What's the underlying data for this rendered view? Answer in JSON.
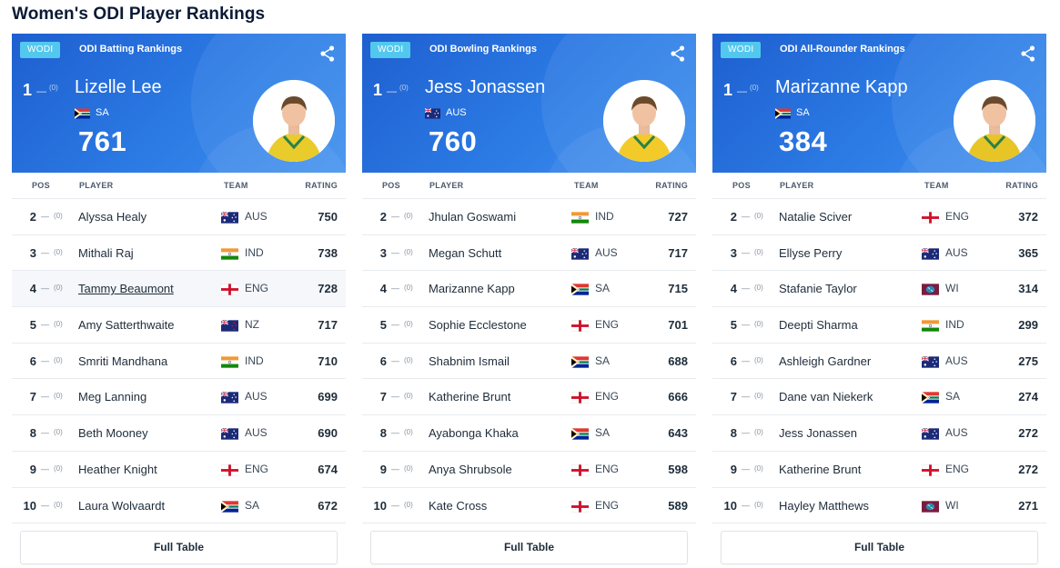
{
  "page_title": "Women's ODI Player Rankings",
  "colors": {
    "hero_blue": "#2c7be5",
    "badge": "#53c8ee"
  },
  "panels": [
    {
      "badge": "WODI",
      "heading": "ODI Batting Rankings",
      "share_icon": "share-icon",
      "leader": {
        "pos": "1",
        "change": "(0)",
        "name": "Lizelle Lee",
        "team": "SA",
        "flag": "SA",
        "rating": "761",
        "kit": "#e8c81e"
      },
      "headers": {
        "pos": "POS",
        "player": "PLAYER",
        "team": "TEAM",
        "rating": "RATING"
      },
      "rows": [
        {
          "pos": "2",
          "change": "(0)",
          "name": "Alyssa Healy",
          "team": "AUS",
          "flag": "AUS",
          "rating": "750"
        },
        {
          "pos": "3",
          "change": "(0)",
          "name": "Mithali Raj",
          "team": "IND",
          "flag": "IND",
          "rating": "738"
        },
        {
          "pos": "4",
          "change": "(0)",
          "name": "Tammy Beaumont",
          "team": "ENG",
          "flag": "ENG",
          "rating": "728",
          "hover": true
        },
        {
          "pos": "5",
          "change": "(0)",
          "name": "Amy Satterthwaite",
          "team": "NZ",
          "flag": "NZ",
          "rating": "717"
        },
        {
          "pos": "6",
          "change": "(0)",
          "name": "Smriti Mandhana",
          "team": "IND",
          "flag": "IND",
          "rating": "710"
        },
        {
          "pos": "7",
          "change": "(0)",
          "name": "Meg Lanning",
          "team": "AUS",
          "flag": "AUS",
          "rating": "699"
        },
        {
          "pos": "8",
          "change": "(0)",
          "name": "Beth Mooney",
          "team": "AUS",
          "flag": "AUS",
          "rating": "690"
        },
        {
          "pos": "9",
          "change": "(0)",
          "name": "Heather Knight",
          "team": "ENG",
          "flag": "ENG",
          "rating": "674"
        },
        {
          "pos": "10",
          "change": "(0)",
          "name": "Laura Wolvaardt",
          "team": "SA",
          "flag": "SA",
          "rating": "672"
        }
      ],
      "full_table": "Full Table"
    },
    {
      "badge": "WODI",
      "heading": "ODI Bowling Rankings",
      "share_icon": "share-icon",
      "leader": {
        "pos": "1",
        "change": "(0)",
        "name": "Jess Jonassen",
        "team": "AUS",
        "flag": "AUS",
        "rating": "760",
        "kit": "#f2c81d"
      },
      "headers": {
        "pos": "POS",
        "player": "PLAYER",
        "team": "TEAM",
        "rating": "RATING"
      },
      "rows": [
        {
          "pos": "2",
          "change": "(0)",
          "name": "Jhulan Goswami",
          "team": "IND",
          "flag": "IND",
          "rating": "727"
        },
        {
          "pos": "3",
          "change": "(0)",
          "name": "Megan Schutt",
          "team": "AUS",
          "flag": "AUS",
          "rating": "717"
        },
        {
          "pos": "4",
          "change": "(0)",
          "name": "Marizanne Kapp",
          "team": "SA",
          "flag": "SA",
          "rating": "715"
        },
        {
          "pos": "5",
          "change": "(0)",
          "name": "Sophie Ecclestone",
          "team": "ENG",
          "flag": "ENG",
          "rating": "701"
        },
        {
          "pos": "6",
          "change": "(0)",
          "name": "Shabnim Ismail",
          "team": "SA",
          "flag": "SA",
          "rating": "688"
        },
        {
          "pos": "7",
          "change": "(0)",
          "name": "Katherine Brunt",
          "team": "ENG",
          "flag": "ENG",
          "rating": "666"
        },
        {
          "pos": "8",
          "change": "(0)",
          "name": "Ayabonga Khaka",
          "team": "SA",
          "flag": "SA",
          "rating": "643"
        },
        {
          "pos": "9",
          "change": "(0)",
          "name": "Anya Shrubsole",
          "team": "ENG",
          "flag": "ENG",
          "rating": "598"
        },
        {
          "pos": "10",
          "change": "(0)",
          "name": "Kate Cross",
          "team": "ENG",
          "flag": "ENG",
          "rating": "589"
        }
      ],
      "full_table": "Full Table"
    },
    {
      "badge": "WODI",
      "heading": "ODI All-Rounder Rankings",
      "share_icon": "share-icon",
      "leader": {
        "pos": "1",
        "change": "(0)",
        "name": "Marizanne Kapp",
        "team": "SA",
        "flag": "SA",
        "rating": "384",
        "kit": "#e6c21a"
      },
      "headers": {
        "pos": "POS",
        "player": "PLAYER",
        "team": "TEAM",
        "rating": "RATING"
      },
      "rows": [
        {
          "pos": "2",
          "change": "(0)",
          "name": "Natalie Sciver",
          "team": "ENG",
          "flag": "ENG",
          "rating": "372"
        },
        {
          "pos": "3",
          "change": "(0)",
          "name": "Ellyse Perry",
          "team": "AUS",
          "flag": "AUS",
          "rating": "365"
        },
        {
          "pos": "4",
          "change": "(0)",
          "name": "Stafanie Taylor",
          "team": "WI",
          "flag": "WI",
          "rating": "314"
        },
        {
          "pos": "5",
          "change": "(0)",
          "name": "Deepti Sharma",
          "team": "IND",
          "flag": "IND",
          "rating": "299"
        },
        {
          "pos": "6",
          "change": "(0)",
          "name": "Ashleigh Gardner",
          "team": "AUS",
          "flag": "AUS",
          "rating": "275"
        },
        {
          "pos": "7",
          "change": "(0)",
          "name": "Dane van Niekerk",
          "team": "SA",
          "flag": "SA",
          "rating": "274"
        },
        {
          "pos": "8",
          "change": "(0)",
          "name": "Jess Jonassen",
          "team": "AUS",
          "flag": "AUS",
          "rating": "272"
        },
        {
          "pos": "9",
          "change": "(0)",
          "name": "Katherine Brunt",
          "team": "ENG",
          "flag": "ENG",
          "rating": "272"
        },
        {
          "pos": "10",
          "change": "(0)",
          "name": "Hayley Matthews",
          "team": "WI",
          "flag": "WI",
          "rating": "271"
        }
      ],
      "full_table": "Full Table"
    }
  ]
}
